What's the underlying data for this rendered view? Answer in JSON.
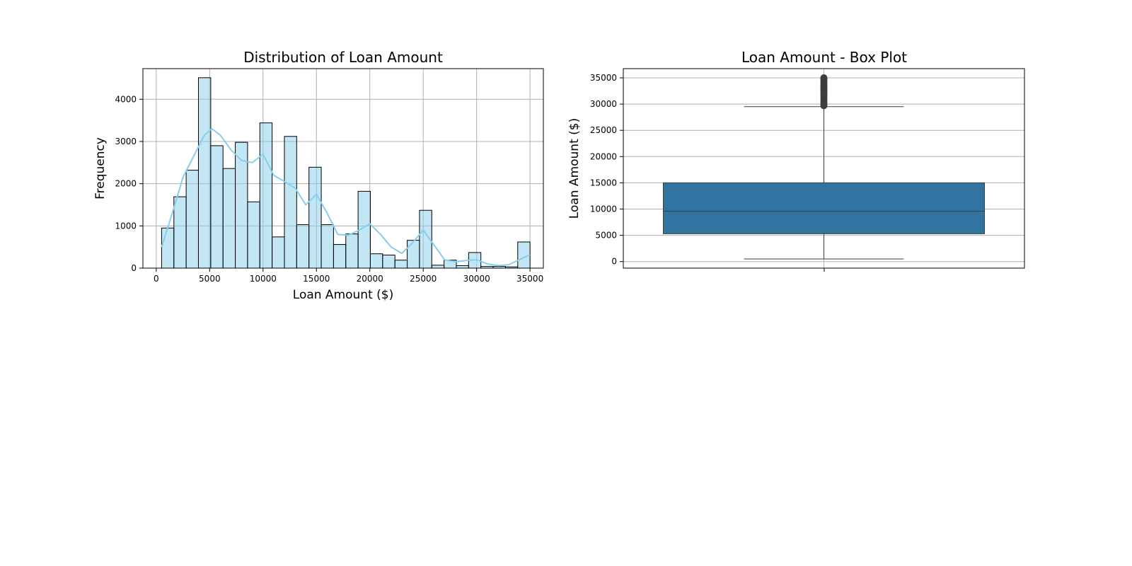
{
  "chart_data": [
    {
      "type": "bar",
      "title": "Distribution of Loan Amount",
      "xlabel": "Loan Amount ($)",
      "ylabel": "Frequency",
      "xlim": [
        -1250,
        36250
      ],
      "ylim": [
        0,
        4725
      ],
      "x_ticks": [
        0,
        5000,
        10000,
        15000,
        20000,
        25000,
        30000,
        35000
      ],
      "y_ticks": [
        0,
        1000,
        2000,
        3000,
        4000
      ],
      "grid": true,
      "bar_color": "#87ceeb",
      "kde_color": "#87ceeb",
      "bins": [
        {
          "x0": 500,
          "x1": 1650,
          "count": 950
        },
        {
          "x0": 1650,
          "x1": 2800,
          "count": 1690
        },
        {
          "x0": 2800,
          "x1": 3950,
          "count": 2320
        },
        {
          "x0": 3950,
          "x1": 5100,
          "count": 4510
        },
        {
          "x0": 5100,
          "x1": 6250,
          "count": 2900
        },
        {
          "x0": 6250,
          "x1": 7400,
          "count": 2360
        },
        {
          "x0": 7400,
          "x1": 8550,
          "count": 2980
        },
        {
          "x0": 8550,
          "x1": 9700,
          "count": 1570
        },
        {
          "x0": 9700,
          "x1": 10850,
          "count": 3440
        },
        {
          "x0": 10850,
          "x1": 12000,
          "count": 740
        },
        {
          "x0": 12000,
          "x1": 13150,
          "count": 3120
        },
        {
          "x0": 13150,
          "x1": 14300,
          "count": 1030
        },
        {
          "x0": 14300,
          "x1": 15450,
          "count": 2390
        },
        {
          "x0": 15450,
          "x1": 16600,
          "count": 1030
        },
        {
          "x0": 16600,
          "x1": 17750,
          "count": 560
        },
        {
          "x0": 17750,
          "x1": 18900,
          "count": 810
        },
        {
          "x0": 18900,
          "x1": 20050,
          "count": 1820
        },
        {
          "x0": 20050,
          "x1": 21200,
          "count": 340
        },
        {
          "x0": 21200,
          "x1": 22350,
          "count": 310
        },
        {
          "x0": 22350,
          "x1": 23500,
          "count": 190
        },
        {
          "x0": 23500,
          "x1": 24650,
          "count": 660
        },
        {
          "x0": 24650,
          "x1": 25800,
          "count": 1370
        },
        {
          "x0": 25800,
          "x1": 26950,
          "count": 70
        },
        {
          "x0": 26950,
          "x1": 28100,
          "count": 190
        },
        {
          "x0": 28100,
          "x1": 29250,
          "count": 60
        },
        {
          "x0": 29250,
          "x1": 30400,
          "count": 370
        },
        {
          "x0": 30400,
          "x1": 31550,
          "count": 40
        },
        {
          "x0": 31550,
          "x1": 32700,
          "count": 40
        },
        {
          "x0": 32700,
          "x1": 33850,
          "count": 30
        },
        {
          "x0": 33850,
          "x1": 35000,
          "count": 620
        }
      ],
      "kde": {
        "x": [
          500,
          1500,
          2500,
          3500,
          4500,
          5200,
          6000,
          7000,
          8000,
          9000,
          10000,
          11000,
          12000,
          13000,
          14000,
          15000,
          16000,
          17000,
          18000,
          19000,
          20000,
          21000,
          22000,
          23000,
          24000,
          25000,
          26000,
          27000,
          28000,
          29000,
          30000,
          31000,
          32000,
          33000,
          34000,
          35000
        ],
        "y": [
          500,
          1300,
          2150,
          2650,
          3150,
          3300,
          3150,
          2800,
          2550,
          2500,
          2700,
          2200,
          2050,
          1900,
          1500,
          1750,
          1300,
          800,
          780,
          900,
          1050,
          800,
          500,
          350,
          600,
          900,
          550,
          200,
          150,
          180,
          200,
          100,
          60,
          80,
          200,
          320
        ]
      }
    },
    {
      "type": "box",
      "title": "Loan Amount - Box Plot",
      "xlabel": "",
      "ylabel": "Loan Amount ($)",
      "ylim": [
        -1250,
        36750
      ],
      "y_ticks": [
        0,
        5000,
        10000,
        15000,
        20000,
        25000,
        30000,
        35000
      ],
      "grid": true,
      "box_color": "#3274a1",
      "line_color": "#3d3d3d",
      "whisker_low": 500,
      "q1": 5300,
      "median": 9600,
      "q3": 15000,
      "whisker_high": 29500,
      "outliers": [
        29700,
        30000,
        30400,
        30800,
        31200,
        31600,
        32000,
        32400,
        32800,
        33200,
        33600,
        34000,
        34400,
        34800,
        35000
      ]
    }
  ]
}
